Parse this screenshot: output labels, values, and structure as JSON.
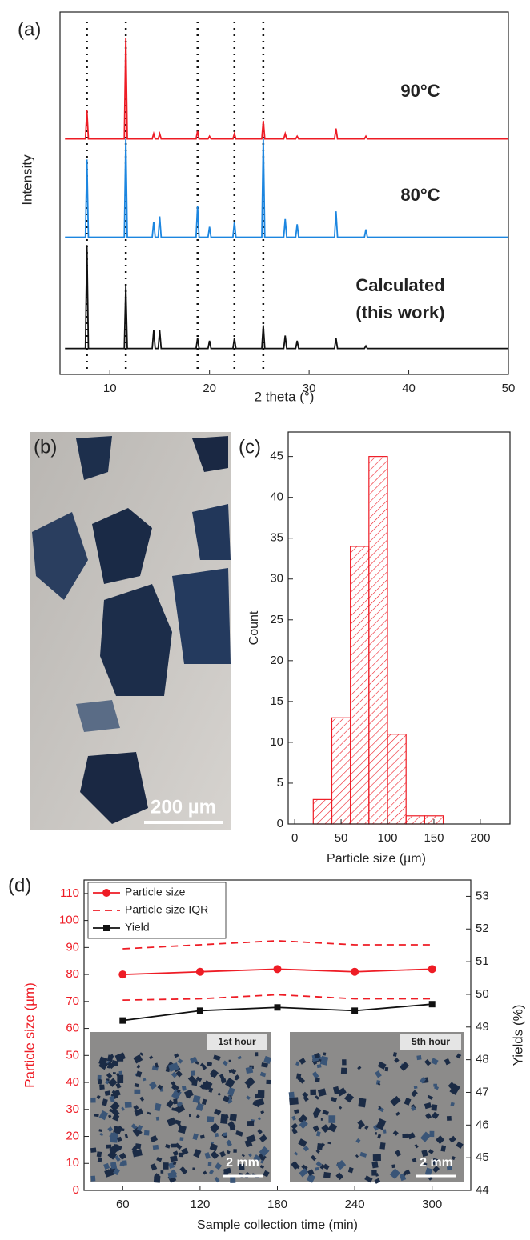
{
  "chart_data": [
    {
      "type": "line",
      "panel_label": "(a)",
      "x_label": "2 theta (°)",
      "y_label": "Intensity",
      "xlim": [
        5,
        50
      ],
      "xticks": [
        10,
        20,
        30,
        40,
        50
      ],
      "ylim": [
        -10,
        130
      ],
      "reference_lines": [
        7.7,
        11.6,
        18.8,
        22.5,
        25.4
      ],
      "annotations": [
        "90°C",
        "80°C",
        "Calculated",
        "(this work)"
      ],
      "x": [
        5.5,
        7.55,
        7.7,
        7.85,
        11.45,
        11.6,
        11.75,
        14.25,
        14.4,
        14.55,
        14.85,
        15.0,
        15.15,
        18.65,
        18.8,
        18.95,
        19.85,
        20.0,
        20.15,
        22.35,
        22.5,
        22.65,
        25.25,
        25.4,
        25.55,
        27.45,
        27.6,
        27.75,
        28.65,
        28.8,
        28.95,
        32.55,
        32.7,
        32.85,
        35.55,
        35.7,
        35.85,
        50
      ],
      "series": [
        {
          "name": "90°C",
          "color": "#ee1c25",
          "values": [
            81,
            81,
            92,
            81,
            81,
            120,
            81,
            81,
            83,
            81,
            81,
            83,
            81,
            81,
            84,
            81,
            81,
            82,
            81,
            81,
            83,
            81,
            81,
            88,
            81,
            81,
            83,
            81,
            81,
            82,
            81,
            81,
            85,
            81,
            81,
            82,
            81,
            81
          ]
        },
        {
          "name": "80°C",
          "color": "#1c86e0",
          "values": [
            43,
            43,
            73,
            43,
            43,
            81,
            43,
            43,
            49,
            43,
            43,
            51,
            43,
            43,
            55,
            43,
            43,
            47,
            43,
            43,
            49,
            43,
            43,
            81,
            43,
            43,
            50,
            43,
            43,
            48,
            43,
            43,
            53,
            43,
            43,
            46,
            43,
            43
          ]
        },
        {
          "name": "Calculated",
          "color": "#111111",
          "values": [
            0,
            0,
            40,
            0,
            0,
            24,
            0,
            0,
            7,
            0,
            0,
            7,
            0,
            0,
            4,
            0,
            0,
            3,
            0,
            0,
            4,
            0,
            0,
            9,
            0,
            0,
            5,
            0,
            0,
            3,
            0,
            0,
            4,
            0,
            0,
            1,
            0,
            0
          ]
        }
      ]
    },
    {
      "type": "histogram",
      "panel_label": "(c)",
      "x_label": "Particle size (µm)",
      "y_label": "Count",
      "bins": [
        20,
        40,
        60,
        80,
        100,
        120,
        140,
        160
      ],
      "values": [
        3,
        13,
        34,
        45,
        11,
        1,
        1
      ],
      "color": "#ee1c25",
      "xlim": [
        -7,
        232
      ],
      "xticks": [
        0,
        50,
        100,
        150,
        200
      ],
      "ylim": [
        0,
        48
      ],
      "yticks": [
        0,
        5,
        10,
        15,
        20,
        25,
        30,
        35,
        40,
        45
      ]
    },
    {
      "type": "dual_axis_line",
      "panel_label": "(d)",
      "x_label": "Sample collection time (min)",
      "y_label": "Particle size (µm)",
      "y2_label": "Yields (%)",
      "legend": "upper left",
      "x": [
        60,
        120,
        180,
        240,
        300
      ],
      "xlim": [
        30,
        330
      ],
      "xticks": [
        60,
        120,
        180,
        240,
        300
      ],
      "ylim": [
        0,
        115
      ],
      "yticks": [
        0,
        10,
        20,
        30,
        40,
        50,
        60,
        70,
        80,
        90,
        100,
        110
      ],
      "y2lim": [
        44,
        53.5
      ],
      "y2ticks": [
        44,
        45,
        46,
        47,
        48,
        49,
        50,
        51,
        52,
        53
      ],
      "series": [
        {
          "name": "Particle size",
          "color": "#ee1c25",
          "marker": "circle",
          "values": [
            80,
            81,
            82,
            81,
            82
          ]
        },
        {
          "name": "Particle size IQR",
          "color": "#ee1c25",
          "dash": true,
          "values": [
            89.5,
            91,
            92.5,
            91,
            91
          ],
          "lower": [
            70.5,
            71,
            72.5,
            71,
            71
          ]
        },
        {
          "name": "Yield",
          "color": "#111111",
          "marker": "square",
          "axis": "y2",
          "values": [
            49.2,
            49.5,
            49.6,
            49.5,
            49.7
          ]
        }
      ],
      "insets": [
        {
          "title": "1st hour",
          "scale_bar": "2 mm"
        },
        {
          "title": "5th hour",
          "scale_bar": "2 mm"
        }
      ]
    }
  ],
  "panel_b": {
    "label": "(b)",
    "scale_bar": "200 µm"
  }
}
